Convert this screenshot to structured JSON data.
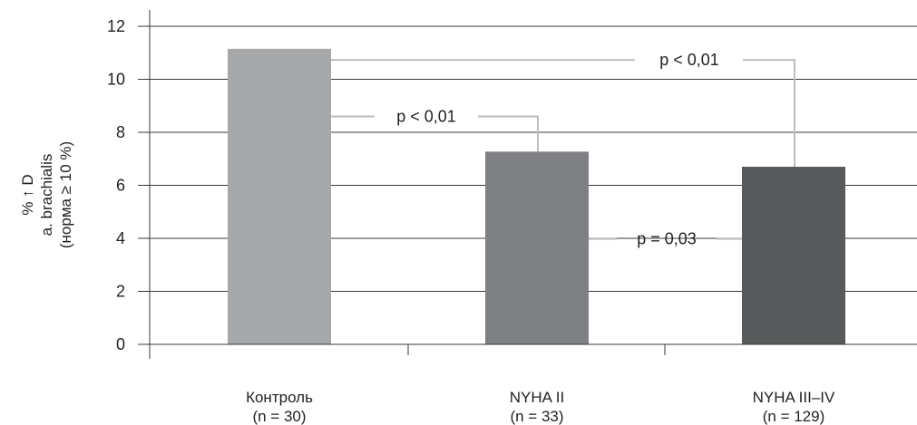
{
  "chart_data": {
    "type": "bar",
    "categories": [
      "Контроль",
      "NYHA II",
      "NYHA III–IV"
    ],
    "category_sublabels": [
      "(n = 30)",
      "(n = 33)",
      "(n = 129)"
    ],
    "values": [
      11.15,
      7.27,
      6.7
    ],
    "ylabel_lines": [
      "% ↑ D",
      "a. brachialis",
      "(норма ≥ 10 %)"
    ],
    "ylim": [
      0,
      12
    ],
    "yticks": [
      0,
      2,
      4,
      6,
      8,
      10,
      12
    ],
    "grid": true,
    "legend": "none",
    "comparisons": [
      {
        "from": "Контроль",
        "to": "NYHA III–IV",
        "label": "p < 0,01"
      },
      {
        "from": "Контроль",
        "to": "NYHA II",
        "label": "p < 0,01"
      },
      {
        "from": "NYHA II",
        "to": "NYHA III–IV",
        "label": "p = 0,03"
      }
    ]
  },
  "colors": {
    "bars": [
      "#a7a8aa",
      "#7f8083",
      "#58595b"
    ],
    "grid": "#3a3a3a",
    "brackets": "#bdbdbd"
  }
}
